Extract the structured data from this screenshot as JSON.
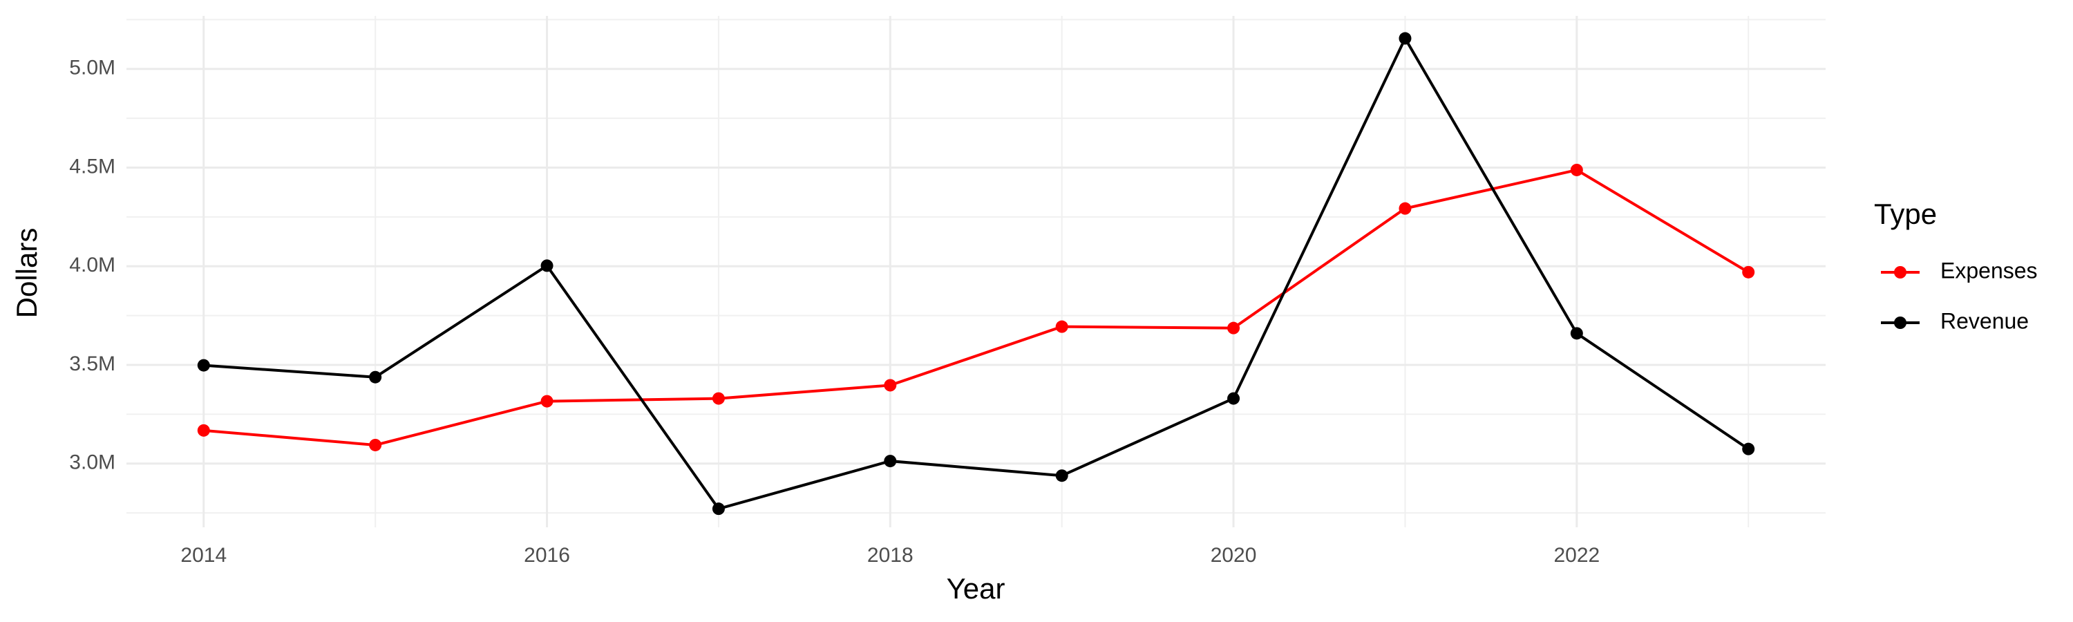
{
  "chart_data": {
    "type": "line",
    "x_label": "Year",
    "y_label": "Dollars",
    "legend_title": "Type",
    "x": [
      2014,
      2015,
      2016,
      2017,
      2018,
      2019,
      2020,
      2021,
      2022,
      2023
    ],
    "series": [
      {
        "name": "Expenses",
        "color": "#ff0000",
        "values": [
          3168000,
          3094000,
          3316000,
          3330000,
          3397000,
          3694000,
          3687000,
          4293000,
          4488000,
          3970000
        ]
      },
      {
        "name": "Revenue",
        "color": "#000000",
        "values": [
          3498000,
          3438000,
          4003000,
          2771000,
          3013000,
          2939000,
          3330000,
          5155000,
          3660000,
          3074000
        ]
      }
    ],
    "xlim": [
      2013.55,
      2023.45
    ],
    "xticks": [
      2014,
      2016,
      2018,
      2020,
      2022
    ],
    "ylim": [
      2677000,
      5269000
    ],
    "yticks": [
      {
        "value": 3000000,
        "label": "3.0M"
      },
      {
        "value": 3500000,
        "label": "3.5M"
      },
      {
        "value": 4000000,
        "label": "4.0M"
      },
      {
        "value": 4500000,
        "label": "4.5M"
      },
      {
        "value": 5000000,
        "label": "5.0M"
      }
    ],
    "grid": true
  }
}
